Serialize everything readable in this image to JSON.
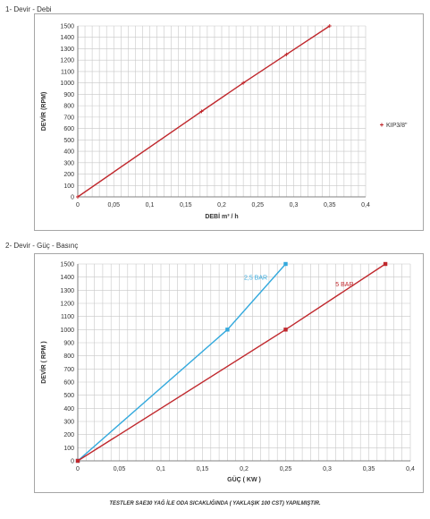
{
  "sections": {
    "s1_title": "1- Devir - Debi",
    "s2_title": "2- Devir - Güç - Basınç"
  },
  "footnote": "TESTLER SAE30 YAĞ İLE ODA SICAKLIĞINDA ( YAKLAŞIK 100 CST) YAPILMIŞTIR.",
  "colors": {
    "red": "#c0282d",
    "blue": "#33a9dd",
    "grid": "#c8c8c8",
    "axis": "#808080"
  },
  "chart_data": [
    {
      "type": "line",
      "title": "",
      "xlabel": "DEBİ m³ / h",
      "ylabel": "DEVİR (RPM)",
      "xlim": [
        0,
        0.4
      ],
      "ylim": [
        0,
        1500
      ],
      "xticks": [
        "0",
        "0,05",
        "0,1",
        "0,15",
        "0,2",
        "0,25",
        "0,3",
        "0,35",
        "0,4"
      ],
      "yticks": [
        "0",
        "100",
        "200",
        "300",
        "400",
        "500",
        "600",
        "700",
        "800",
        "900",
        "1000",
        "1100",
        "1200",
        "1300",
        "1400",
        "1500"
      ],
      "grid": true,
      "legend_position": "right",
      "series": [
        {
          "name": "KIP3/8\"",
          "color": "#c0282d",
          "x": [
            0,
            0.172,
            0.23,
            0.29,
            0.35
          ],
          "y": [
            0,
            750,
            1000,
            1250,
            1500
          ]
        }
      ]
    },
    {
      "type": "line",
      "title": "",
      "xlabel": "GÜÇ ( KW )",
      "ylabel": "DEVİR ( RPM )",
      "xlim": [
        0,
        0.4
      ],
      "ylim": [
        0,
        1500
      ],
      "xticks": [
        "0",
        "0,05",
        "0,1",
        "0,15",
        "0,2",
        "0,25",
        "0,3",
        "0,35",
        "0,4"
      ],
      "yticks": [
        "0",
        "100",
        "200",
        "300",
        "400",
        "500",
        "600",
        "700",
        "800",
        "900",
        "1000",
        "1100",
        "1200",
        "1300",
        "1400",
        "1500"
      ],
      "grid": true,
      "legend_position": "none",
      "series": [
        {
          "name": "2,5 BAR",
          "color": "#33a9dd",
          "x": [
            0,
            0.18,
            0.25
          ],
          "y": [
            0,
            1000,
            1500
          ]
        },
        {
          "name": "5 BAR",
          "color": "#c0282d",
          "x": [
            0,
            0.25,
            0.37
          ],
          "y": [
            0,
            1000,
            1500
          ]
        }
      ]
    }
  ]
}
